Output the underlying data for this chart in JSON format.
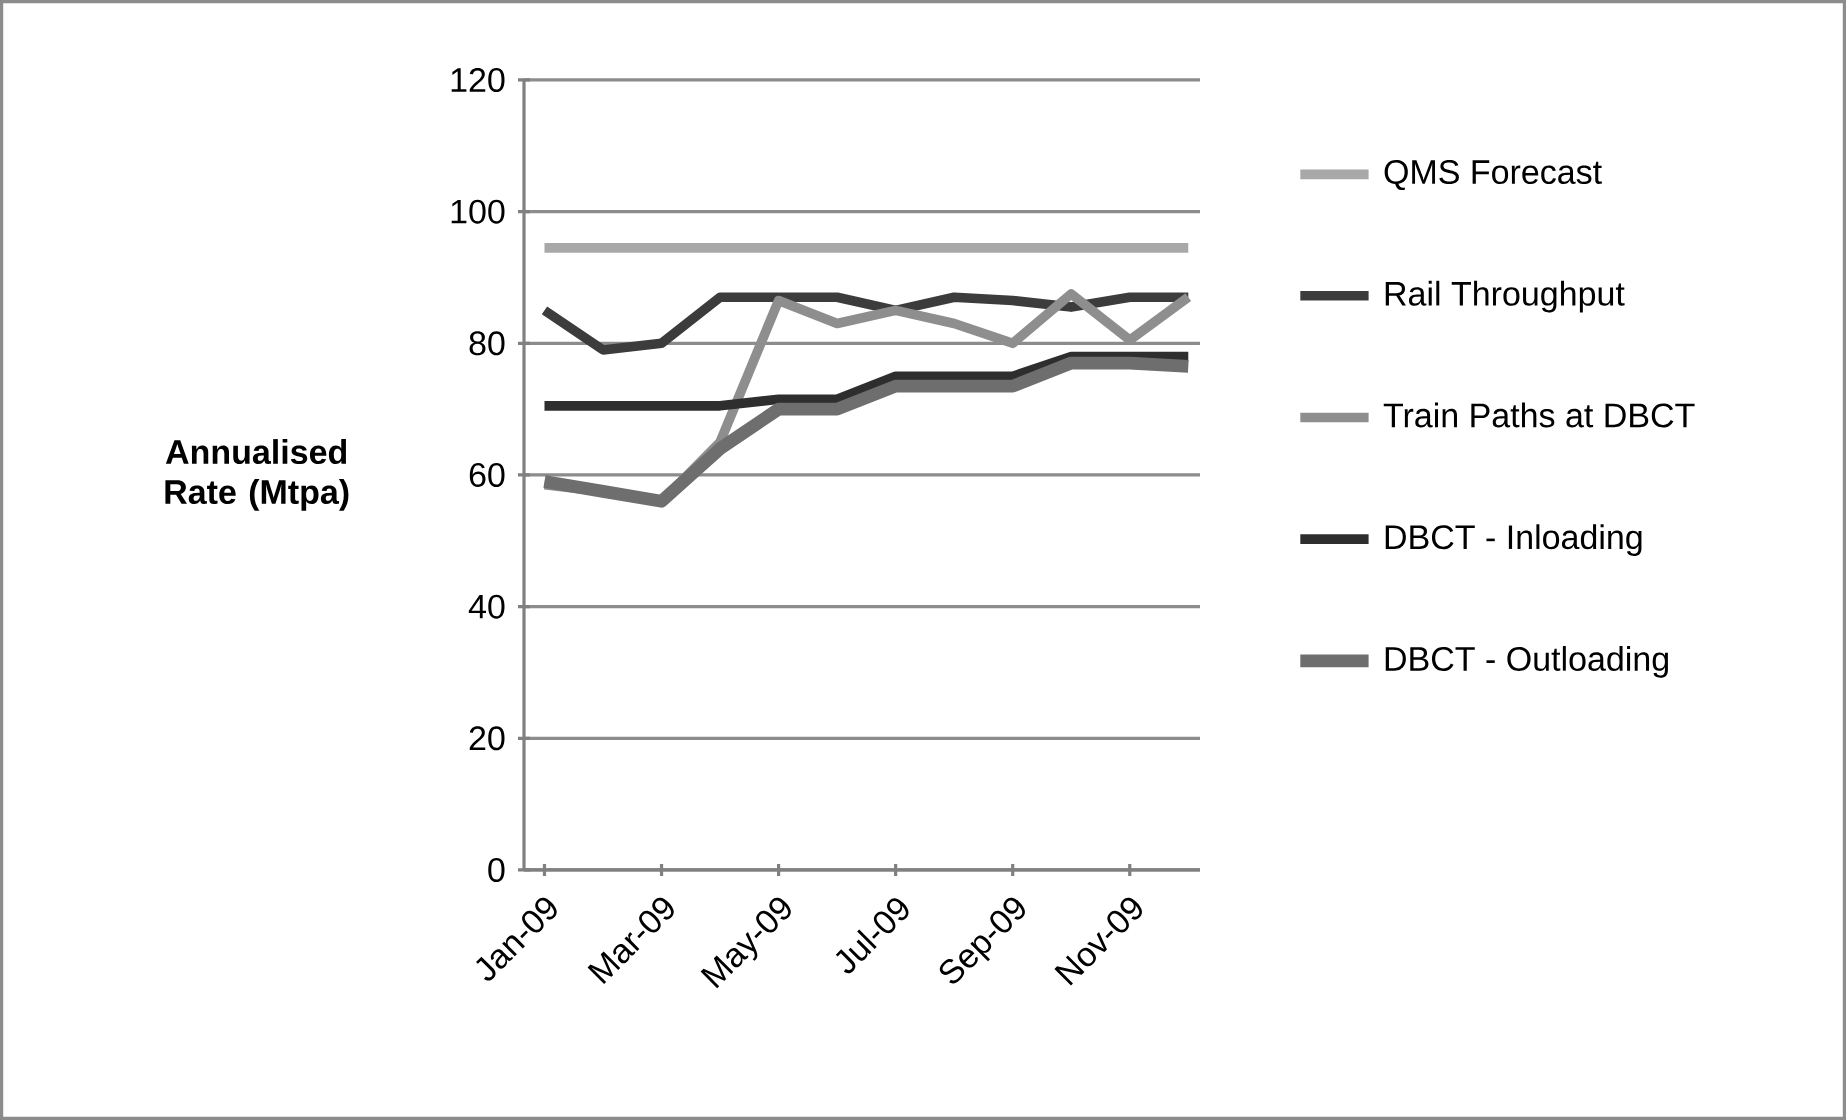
{
  "chart_data": {
    "type": "line",
    "ylabel": "Annualised Rate (Mtpa)",
    "categories": [
      "Jan-09",
      null,
      "Mar-09",
      null,
      "May-09",
      null,
      "Jul-09",
      null,
      "Sep-09",
      null,
      "Nov-09",
      null
    ],
    "series": [
      {
        "name": "QMS Forecast",
        "color": "#a8a8a8",
        "values": [
          94.5,
          94.5,
          94.5,
          94.5,
          94.5,
          94.5,
          94.5,
          94.5,
          94.5,
          94.5,
          94.5,
          94.5
        ]
      },
      {
        "name": "Rail Throughput",
        "color": "#3c3c3c",
        "values": [
          85,
          79,
          80,
          87,
          87,
          87,
          85,
          87,
          86.5,
          85.5,
          87,
          87
        ]
      },
      {
        "name": "Train Paths at DBCT",
        "color": "#8e8e8e",
        "values": [
          58.5,
          57.5,
          56,
          65,
          86.5,
          83,
          85,
          83,
          80,
          87.5,
          80.5,
          87
        ]
      },
      {
        "name": "DBCT - Inloading",
        "color": "#2e2e2e",
        "values": [
          70.5,
          70.5,
          70.5,
          70.5,
          71.5,
          71.5,
          75,
          75,
          75,
          78,
          78,
          78
        ]
      },
      {
        "name": "DBCT - Outloading",
        "color": "#6e6e6e",
        "values": [
          59,
          57.5,
          56,
          64,
          70,
          70,
          73.5,
          73.5,
          73.5,
          77,
          77,
          76.5
        ]
      }
    ],
    "ylim": [
      0,
      120
    ],
    "yticks": [
      0,
      20,
      40,
      60,
      80,
      100,
      120
    ],
    "grid": "y",
    "legend": "right",
    "marker": "none",
    "line_style": "solid"
  }
}
